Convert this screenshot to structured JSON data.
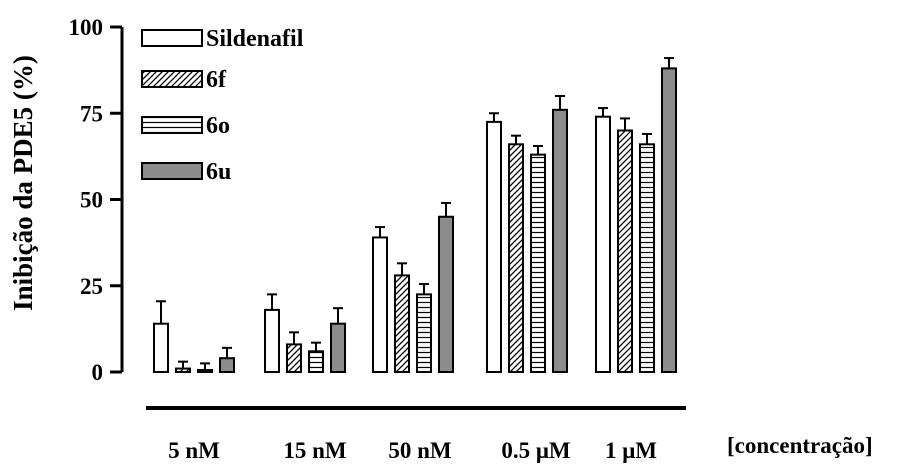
{
  "chart_data": {
    "type": "bar",
    "title": "",
    "ylabel": "Inibição da PDE5 (%)",
    "xlabel": "[concentração]",
    "ylim": [
      0,
      100
    ],
    "yticks": [
      "0",
      "25",
      "50",
      "75",
      "100"
    ],
    "categories": [
      "5 nM",
      "15 nM",
      "50 nM",
      "0.5 μM",
      "1 μM"
    ],
    "legend_position": "top-left",
    "grid": false,
    "series": [
      {
        "name": "Sildenafil",
        "pattern": "open",
        "values": [
          14,
          18,
          39,
          72.5,
          74
        ],
        "errors": [
          6.5,
          4.5,
          3,
          2.5,
          2.5
        ]
      },
      {
        "name": "6f",
        "pattern": "diagonal-hatch",
        "values": [
          1,
          8,
          28,
          66,
          70
        ],
        "errors": [
          2,
          3.5,
          3.5,
          2.5,
          3.5
        ]
      },
      {
        "name": "6o",
        "pattern": "horizontal-lines",
        "values": [
          0.5,
          6,
          22.5,
          63,
          66
        ],
        "errors": [
          2,
          2.5,
          3,
          2.5,
          3
        ]
      },
      {
        "name": "6u",
        "pattern": "solid-gray",
        "values": [
          4,
          14,
          45,
          76,
          88
        ],
        "errors": [
          3,
          4.5,
          4,
          4,
          3
        ]
      }
    ],
    "colors": {
      "fill_gray": "#8c8c8c",
      "stroke": "#000000",
      "open": "#ffffff"
    }
  }
}
